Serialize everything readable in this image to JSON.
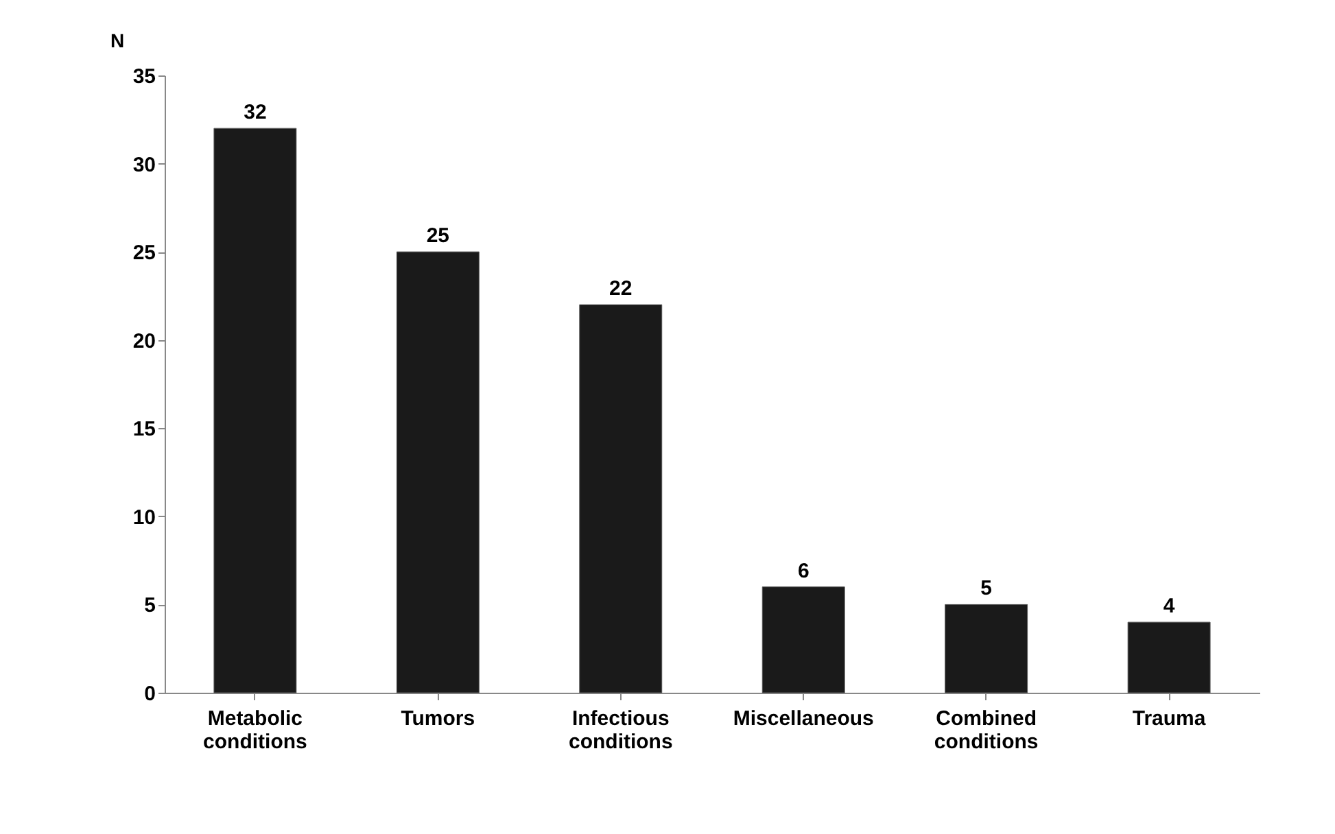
{
  "chart_data": {
    "type": "bar",
    "ylabel": "N",
    "categories": [
      "Metabolic conditions",
      "Tumors",
      "Infectious conditions",
      "Miscellaneous",
      "Combined conditions",
      "Trauma"
    ],
    "values": [
      32,
      25,
      22,
      6,
      5,
      4
    ],
    "color": "#1a1a1a",
    "ylim": [
      0,
      35
    ],
    "yticks": [
      0,
      5,
      10,
      15,
      20,
      25,
      30,
      35
    ],
    "grid": false,
    "data_labels": true
  }
}
